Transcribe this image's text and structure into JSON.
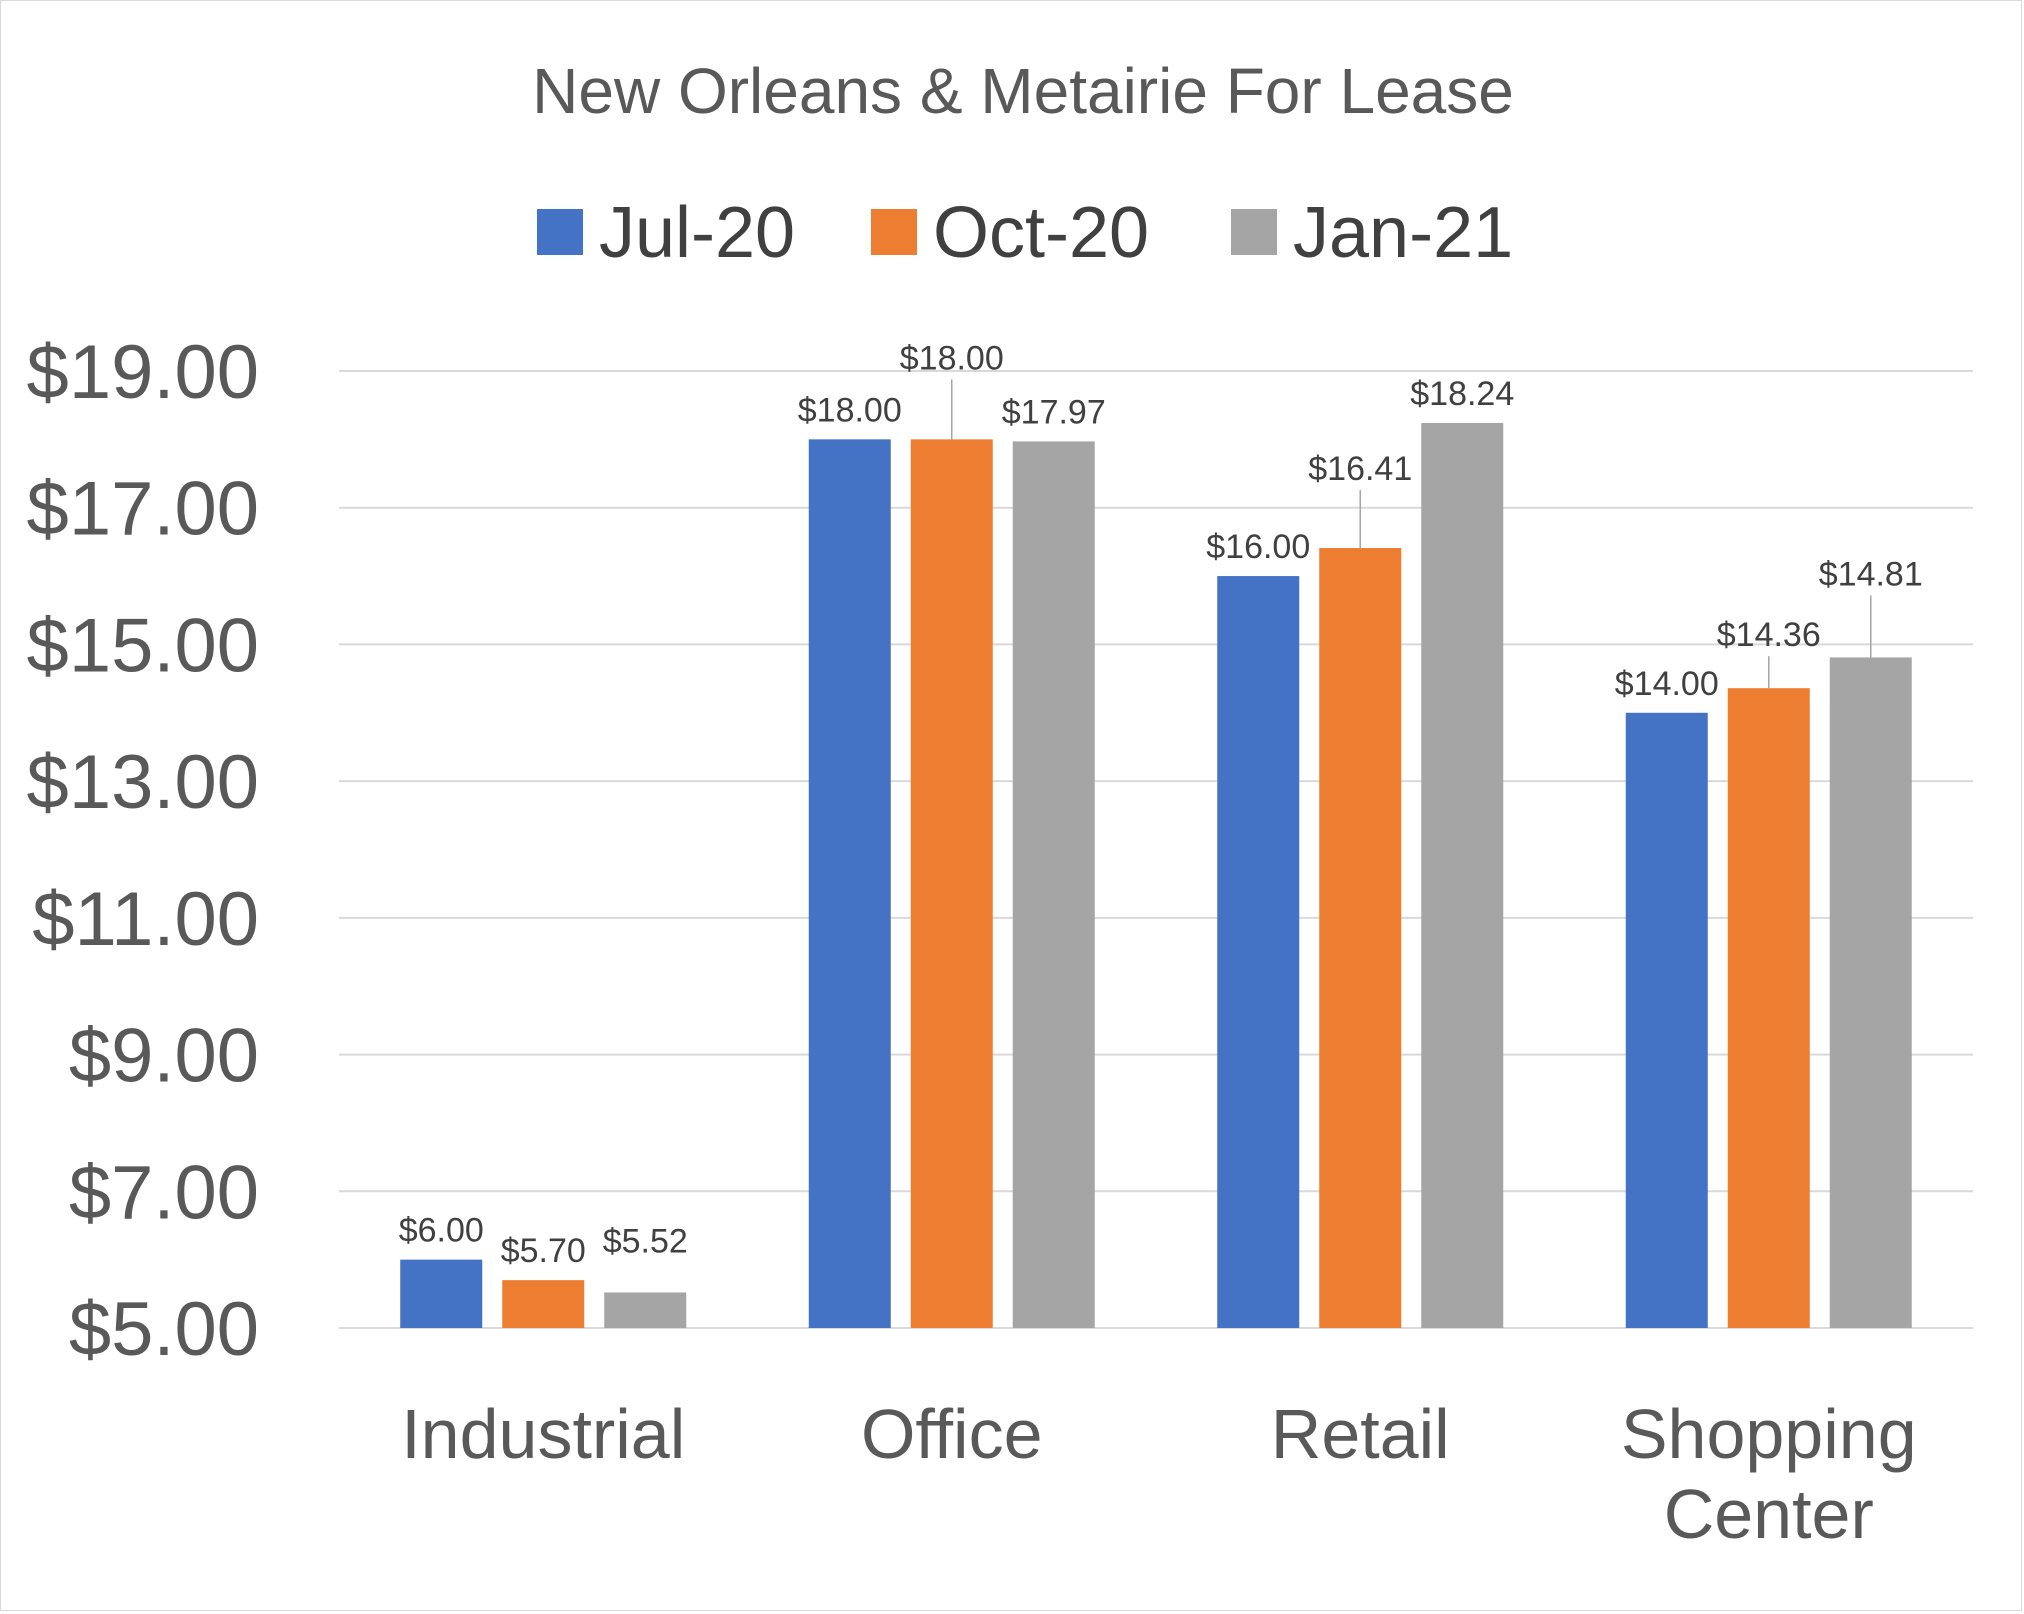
{
  "chart_data": {
    "type": "bar",
    "title": "New Orleans & Metairie For Lease",
    "categories": [
      [
        "Industrial"
      ],
      [
        "Office"
      ],
      [
        "Retail"
      ],
      [
        "Shopping",
        "Center"
      ]
    ],
    "series": [
      {
        "name": "Jul-20",
        "color": "#4472C4",
        "values": [
          6.0,
          18.0,
          16.0,
          14.0
        ],
        "labels": [
          "$6.00",
          "$18.00",
          "$16.00",
          "$14.00"
        ]
      },
      {
        "name": "Oct-20",
        "color": "#ED7D31",
        "values": [
          5.7,
          18.0,
          16.41,
          14.36
        ],
        "labels": [
          "$5.70",
          "$18.00",
          "$16.41",
          "$14.36"
        ]
      },
      {
        "name": "Jan-21",
        "color": "#A5A5A5",
        "values": [
          5.52,
          17.97,
          18.24,
          14.81
        ],
        "labels": [
          "$5.52",
          "$17.97",
          "$18.24",
          "$14.81"
        ]
      }
    ],
    "yticks": [
      5,
      7,
      9,
      11,
      13,
      15,
      17,
      19
    ],
    "ytick_labels": [
      "$5.00",
      "$7.00",
      "$9.00",
      "$11.00",
      "$13.00",
      "$15.00",
      "$17.00",
      "$19.00"
    ],
    "ylim": [
      5,
      19
    ],
    "grid": true,
    "legend_position": "top"
  }
}
